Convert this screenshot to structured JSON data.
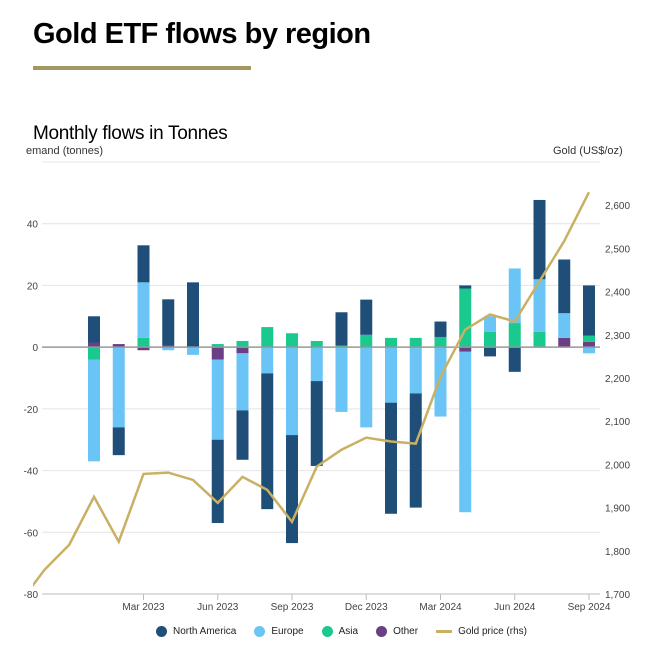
{
  "header": {
    "title": "Gold ETF flows by region",
    "accent_color": "#a49660"
  },
  "chart_data": {
    "type": "bar",
    "stacked": true,
    "title": "Monthly flows in Tonnes",
    "ylabel": "emand (tonnes)",
    "y2label": "Gold (US$/oz)",
    "ylim": [
      -80,
      60
    ],
    "y2lim": [
      1700,
      2700
    ],
    "yticks": [
      -80,
      -60,
      -40,
      -20,
      0,
      20,
      40
    ],
    "y2ticks": [
      "1,700",
      "1,800",
      "1,900",
      "2,000",
      "2,100",
      "2,200",
      "2,300",
      "2,400",
      "2,500",
      "2,600"
    ],
    "grid": true,
    "legend_position": "bottom",
    "categories": [
      "Jan 2023",
      "Feb 2023",
      "Mar 2023",
      "Apr 2023",
      "May 2023",
      "Jun 2023",
      "Jul 2023",
      "Aug 2023",
      "Sep 2023",
      "Oct 2023",
      "Nov 2023",
      "Dec 2023",
      "Jan 2024",
      "Feb 2024",
      "Mar 2024",
      "Apr 2024",
      "May 2024",
      "Jun 2024",
      "Jul 2024",
      "Aug 2024",
      "Sep 2024"
    ],
    "xtick_labels": [
      {
        "index": 2,
        "label": "Mar 2023"
      },
      {
        "index": 5,
        "label": "Jun 2023"
      },
      {
        "index": 8,
        "label": "Sep 2023"
      },
      {
        "index": 11,
        "label": "Dec 2023"
      },
      {
        "index": 14,
        "label": "Mar 2024"
      },
      {
        "index": 17,
        "label": "Jun 2024"
      },
      {
        "index": 20,
        "label": "Sep 2024"
      }
    ],
    "series": [
      {
        "name": "North America",
        "color": "#1f4e79",
        "values": [
          8.5,
          -9,
          12,
          15,
          21,
          -27,
          -16,
          -44,
          -35,
          -27.5,
          10.8,
          11.4,
          -36,
          -37,
          5,
          1,
          -3,
          -8,
          25.7,
          17.4,
          16.3
        ]
      },
      {
        "name": "Europe",
        "color": "#6ac4f5",
        "values": [
          -33,
          -26,
          18,
          -1,
          -2.5,
          -26,
          -18.5,
          -8.5,
          -28.5,
          -11,
          -21,
          -26,
          -18,
          -15,
          -22.5,
          -52,
          5,
          17.7,
          17,
          8,
          -2
        ]
      },
      {
        "name": "Asia",
        "color": "#19c98e",
        "values": [
          -4,
          0,
          3,
          0,
          0,
          1,
          2,
          6.5,
          4.5,
          2,
          0.5,
          4,
          3,
          3,
          3.3,
          19,
          5,
          7.8,
          5,
          0,
          2
        ]
      },
      {
        "name": "Other",
        "color": "#6b3f86",
        "values": [
          1.5,
          1,
          -1,
          0.5,
          0,
          -4,
          -2,
          0,
          0,
          0,
          0,
          0,
          0,
          0,
          0,
          -1.5,
          0,
          0,
          0,
          3,
          1.7
        ]
      }
    ],
    "line_series": {
      "name": "Gold price (rhs)",
      "color": "#c9b064",
      "axis": "right",
      "lead_in": [
        {
          "label": "Oct 2022",
          "value": 1680
        },
        {
          "label": "Nov 2022",
          "value": 1756
        },
        {
          "label": "Dec 2022",
          "value": 1814
        }
      ],
      "values": [
        1925,
        1821,
        1978,
        1981,
        1964,
        1911,
        1971,
        1941,
        1867,
        1995,
        2034,
        2062,
        2053,
        2048,
        2203,
        2312,
        2347,
        2331,
        2424,
        2517,
        2630
      ]
    }
  }
}
